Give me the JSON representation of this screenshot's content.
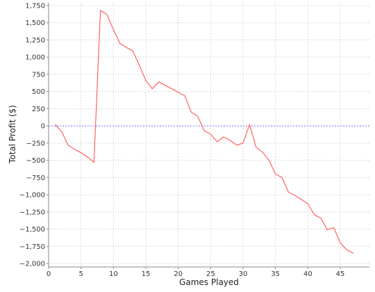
{
  "chart_data": {
    "type": "line",
    "xlabel": "Games Played",
    "ylabel": "Total Profit ($)",
    "xlim": [
      0,
      49.5
    ],
    "ylim": [
      -2040,
      1790
    ],
    "x_ticks": [
      0,
      5,
      10,
      15,
      20,
      25,
      30,
      35,
      40,
      45
    ],
    "x_tick_labels": [
      "0",
      "5",
      "10",
      "15",
      "20",
      "25",
      "30",
      "35",
      "40",
      "45"
    ],
    "y_ticks": [
      1750,
      1500,
      1250,
      1000,
      750,
      500,
      250,
      0,
      -250,
      -500,
      -750,
      -1000,
      -1250,
      -1500,
      -1750,
      -2000
    ],
    "y_tick_labels": [
      "1,750",
      "1,500",
      "1,250",
      "1,000",
      "750",
      "500",
      "250",
      "0",
      "−250",
      "−500",
      "−750",
      "−1,000",
      "−1,250",
      "−1,500",
      "−1,750",
      "−2,000"
    ],
    "grid": true,
    "reference_line": {
      "y": 0,
      "color": "#7070ff",
      "style": "dotted"
    },
    "series": [
      {
        "color": "#ff6060",
        "x": [
          1,
          2,
          3,
          4,
          5,
          6,
          7,
          8,
          9,
          10,
          11,
          12,
          13,
          14,
          15,
          16,
          17,
          18,
          19,
          20,
          21,
          22,
          23,
          24,
          25,
          26,
          27,
          28,
          29,
          30,
          31,
          32,
          33,
          34,
          35,
          36,
          37,
          38,
          39,
          40,
          41,
          42,
          43,
          44,
          45,
          46,
          47
        ],
        "values": [
          20,
          -80,
          -280,
          -340,
          -390,
          -450,
          -530,
          1680,
          1620,
          1400,
          1200,
          1140,
          1090,
          880,
          660,
          540,
          640,
          590,
          540,
          490,
          440,
          200,
          140,
          -70,
          -120,
          -230,
          -160,
          -210,
          -280,
          -250,
          20,
          -310,
          -380,
          -500,
          -700,
          -750,
          -960,
          -1010,
          -1070,
          -1130,
          -1290,
          -1340,
          -1510,
          -1480,
          -1700,
          -1800,
          -1850
        ]
      }
    ]
  }
}
